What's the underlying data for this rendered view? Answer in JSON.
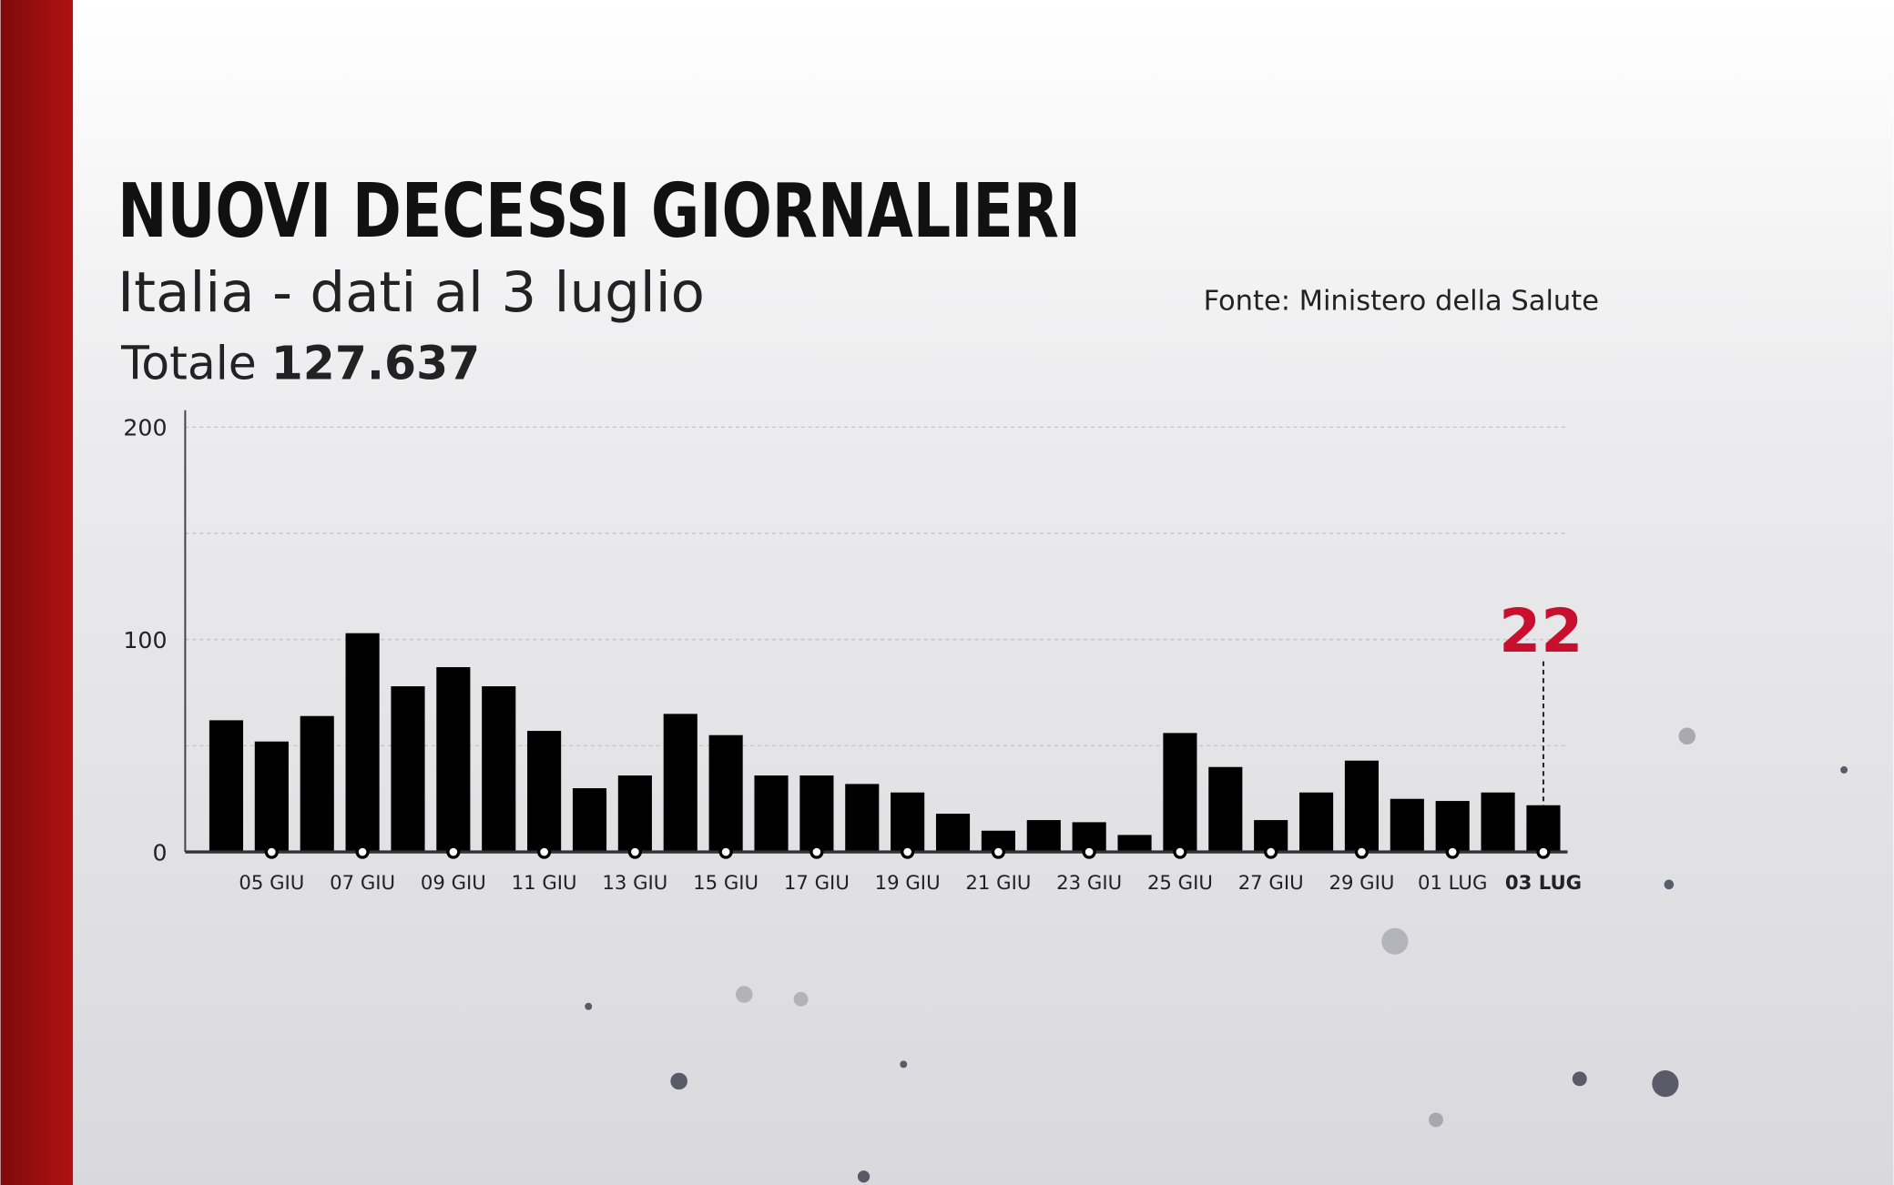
{
  "chart_data": {
    "type": "bar",
    "title": "NUOVI DECESSI GIORNALIERI",
    "subtitle": "Italia - dati al 3 luglio",
    "total": {
      "label": "Totale",
      "value": "127.637"
    },
    "source": "Fonte: Ministero della Salute",
    "categories": [
      null,
      "05 GIU",
      null,
      "07 GIU",
      null,
      "09 GIU",
      null,
      "11 GIU",
      null,
      "13 GIU",
      null,
      "15 GIU",
      null,
      "17 GIU",
      null,
      "19 GIU",
      null,
      "21 GIU",
      null,
      "23 GIU",
      null,
      "25 GIU",
      null,
      "27 GIU",
      null,
      "29 GIU",
      null,
      "01 LUG",
      null,
      "03 LUG"
    ],
    "values": [
      62,
      52,
      64,
      103,
      78,
      87,
      78,
      57,
      30,
      36,
      65,
      55,
      36,
      36,
      32,
      28,
      18,
      10,
      15,
      14,
      8,
      56,
      40,
      15,
      28,
      43,
      25,
      24,
      28,
      22
    ],
    "color": "#000000",
    "annotation_color": "#c8102e",
    "annotate_last": true,
    "ylim": [
      0,
      200
    ],
    "yticks": [
      0,
      100,
      200
    ],
    "minor_yticks": [
      50,
      150
    ],
    "grid": true
  }
}
